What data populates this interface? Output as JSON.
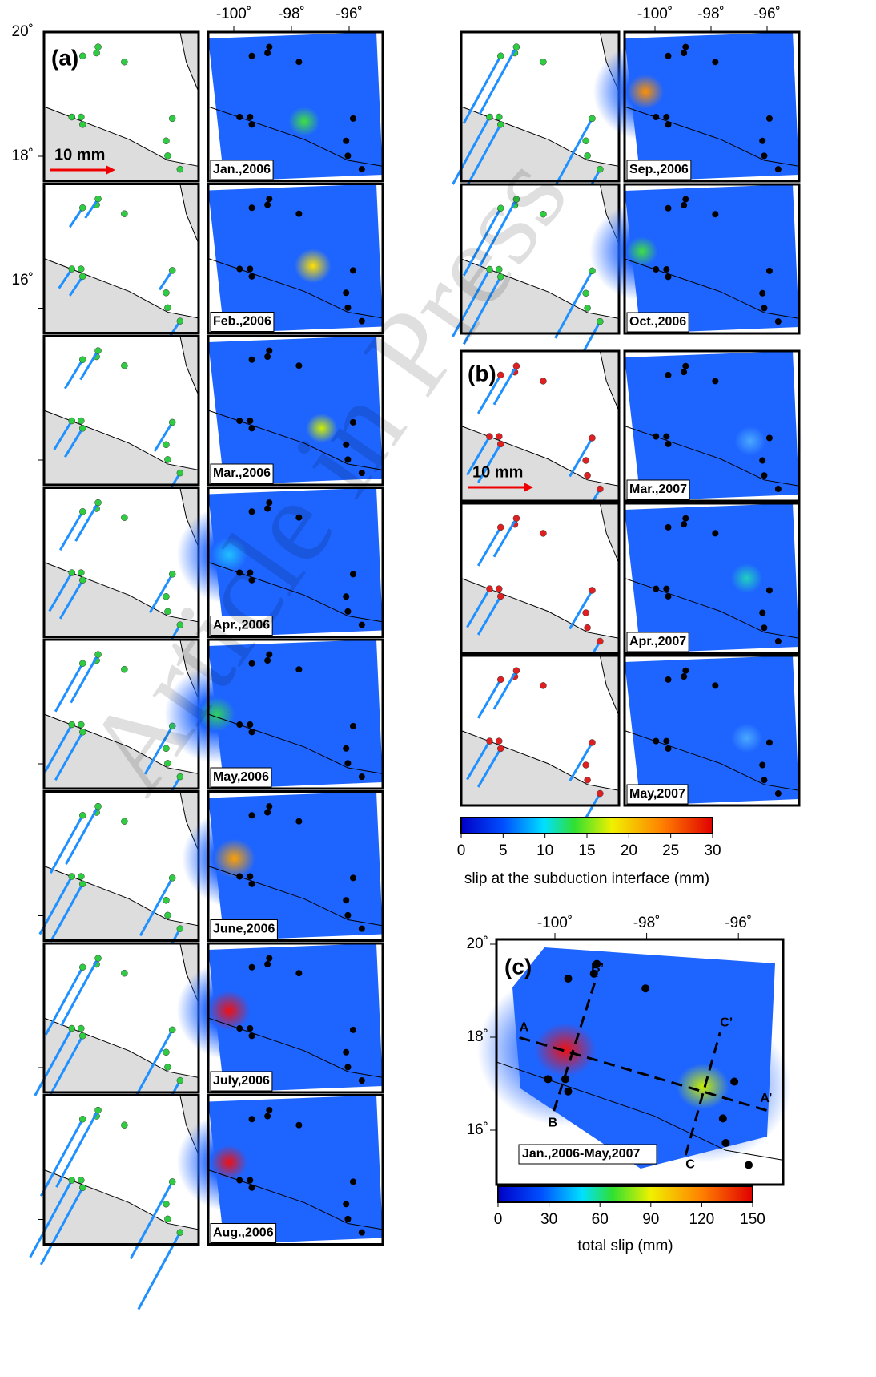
{
  "panel_a": {
    "label": "(a)",
    "scale_label": "10 mm",
    "dates": [
      "Jan.,2006",
      "Feb.,2006",
      "Mar.,2006",
      "Apr.,2006",
      "May,2006",
      "June,2006",
      "July,2006",
      "Aug.,2006",
      "Sep.,2006",
      "Oct.,2006"
    ]
  },
  "panel_b": {
    "label": "(b)",
    "scale_label": "10 mm",
    "dates": [
      "Mar.,2007",
      "Apr.,2007",
      "May,2007"
    ]
  },
  "lon_ticks": [
    {
      "value": -100,
      "label": "-100˚"
    },
    {
      "value": -98,
      "label": "-98˚"
    },
    {
      "value": -96,
      "label": "-96˚"
    }
  ],
  "lat_ticks": [
    {
      "value": 20,
      "label": "20˚"
    },
    {
      "value": 18,
      "label": "18˚"
    },
    {
      "value": 16,
      "label": "16˚"
    }
  ],
  "colorbar_slip": {
    "ticks": [
      0,
      5,
      10,
      15,
      20,
      25,
      30
    ],
    "label": "slip at the subduction interface (mm)"
  },
  "panel_c": {
    "label": "(c)",
    "period": "Jan.,2006-May,2007",
    "profile_labels": [
      "A",
      "A’",
      "B",
      "B’",
      "C",
      "C’"
    ],
    "colorbar": {
      "ticks": [
        0,
        30,
        60,
        90,
        120,
        150
      ],
      "label": "total slip (mm)"
    }
  },
  "watermark": "Article in Press"
}
